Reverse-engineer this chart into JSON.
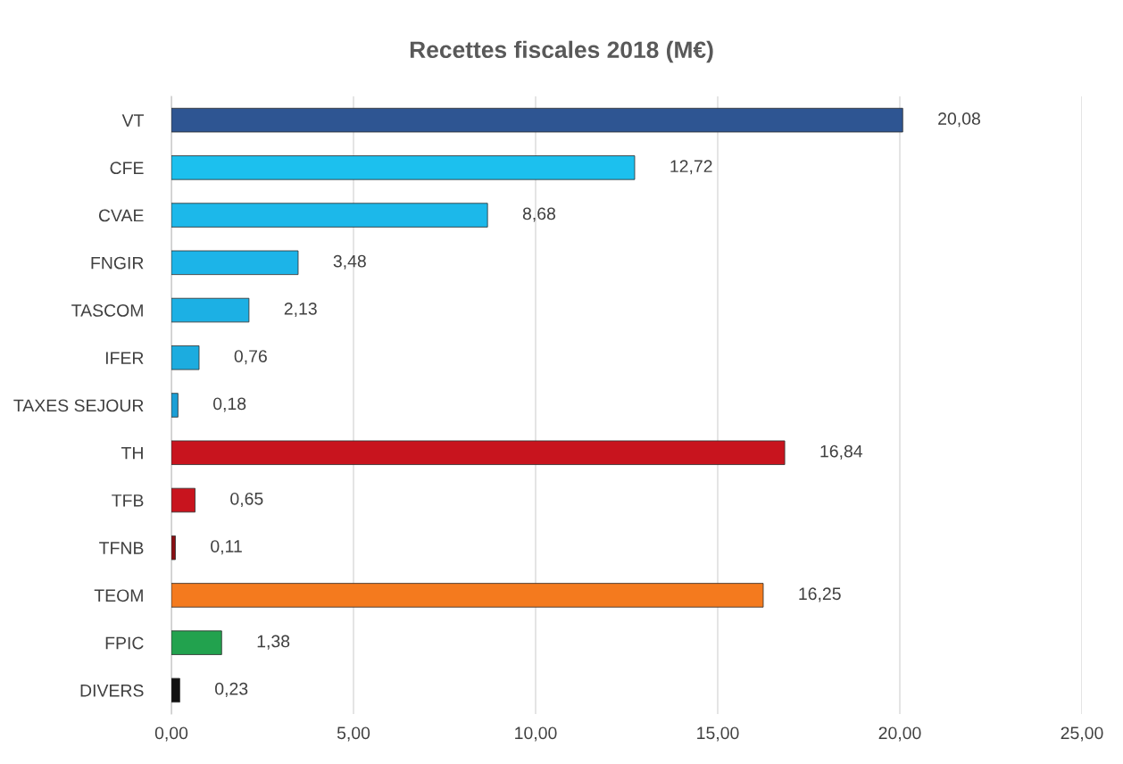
{
  "chart_data": {
    "type": "bar",
    "orientation": "horizontal",
    "title": "Recettes fiscales 2018 (M€)",
    "categories": [
      "VT",
      "CFE",
      "CVAE",
      "FNGIR",
      "TASCOM",
      "IFER",
      "TAXES SEJOUR",
      "TH",
      "TFB",
      "TFNB",
      "TEOM",
      "FPIC",
      "DIVERS"
    ],
    "values": [
      20.08,
      12.72,
      8.68,
      3.48,
      2.13,
      0.76,
      0.18,
      16.84,
      0.65,
      0.11,
      16.25,
      1.38,
      0.23
    ],
    "value_labels": [
      "20,08",
      "12,72",
      "8,68",
      "3,48",
      "2,13",
      "0,76",
      "0,18",
      "16,84",
      "0,65",
      "0,11",
      "16,25",
      "1,38",
      "0,23"
    ],
    "colors": [
      "#2e5592",
      "#1cc0ee",
      "#1cb8ea",
      "#1cb4e8",
      "#1cb0e4",
      "#1cacdf",
      "#1a9fd6",
      "#c8141e",
      "#c8141e",
      "#8a1014",
      "#f47a1e",
      "#22a24e",
      "#111111"
    ],
    "xlim": [
      0,
      25
    ],
    "xticks": [
      {
        "value": 0,
        "label": "0,00"
      },
      {
        "value": 5,
        "label": "5,00"
      },
      {
        "value": 10,
        "label": "10,00"
      },
      {
        "value": 15,
        "label": "15,00"
      },
      {
        "value": 20,
        "label": "20,00"
      },
      {
        "value": 25,
        "label": "25,00"
      }
    ],
    "grid": "x",
    "legend": false
  }
}
